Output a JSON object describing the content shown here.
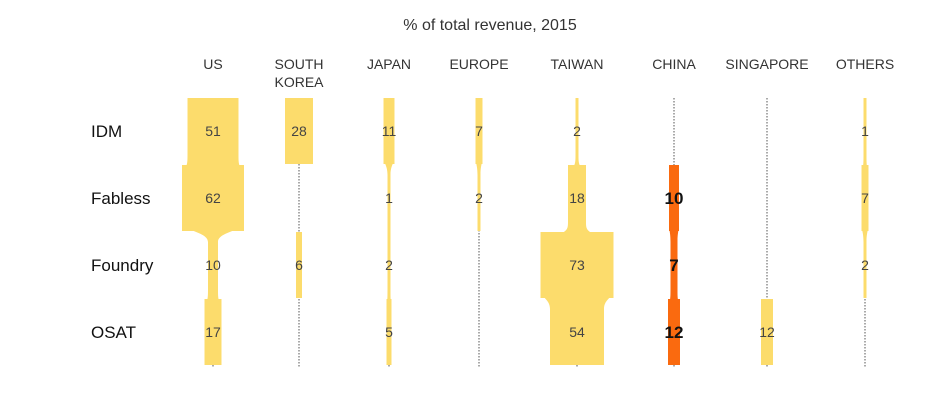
{
  "chart_data": {
    "type": "table",
    "title": "% of total revenue, 2015",
    "columns": [
      "US",
      "SOUTH KOREA",
      "JAPAN",
      "EUROPE",
      "TAIWAN",
      "CHINA",
      "SINGAPORE",
      "OTHERS"
    ],
    "column_label_lines": [
      [
        "US"
      ],
      [
        "SOUTH",
        "KOREA"
      ],
      [
        "JAPAN"
      ],
      [
        "EUROPE"
      ],
      [
        "TAIWAN"
      ],
      [
        "CHINA"
      ],
      [
        "SINGAPORE"
      ],
      [
        "OTHERS"
      ]
    ],
    "rows": [
      "IDM",
      "Fabless",
      "Foundry",
      "OSAT"
    ],
    "values": [
      [
        51,
        28,
        11,
        7,
        2,
        null,
        null,
        1
      ],
      [
        62,
        null,
        1,
        2,
        18,
        10,
        null,
        7
      ],
      [
        10,
        6,
        2,
        null,
        73,
        7,
        null,
        2
      ],
      [
        17,
        null,
        5,
        null,
        54,
        12,
        12,
        null
      ]
    ],
    "highlight_column": "CHINA",
    "colors": {
      "default": "#fcdc6c",
      "highlight": "#fa6a0f",
      "connector": "#555555",
      "text": "#333333"
    }
  }
}
